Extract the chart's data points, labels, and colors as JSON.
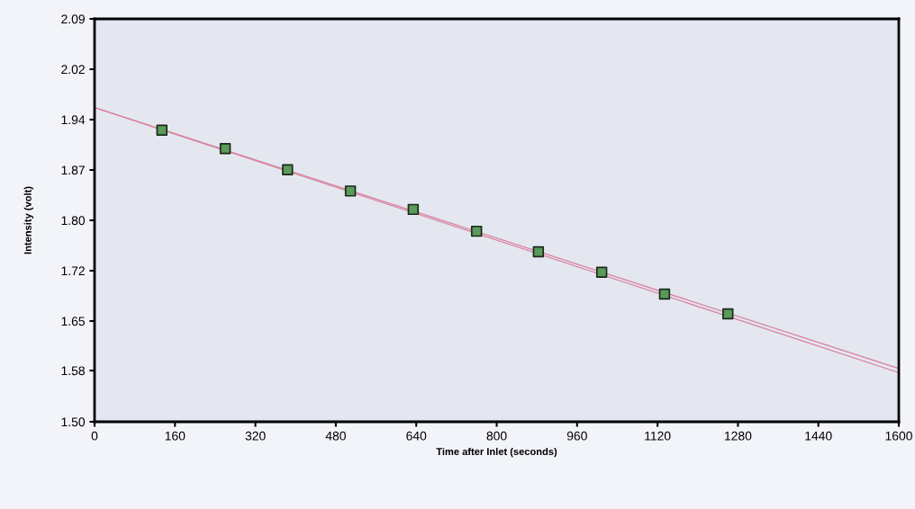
{
  "chart_data": {
    "type": "scatter",
    "xlabel": "Time after Inlet (seconds)",
    "ylabel": "Intensity (volt)",
    "xlim": [
      0,
      1600
    ],
    "xticks": [
      0,
      160,
      320,
      480,
      640,
      800,
      960,
      1120,
      1280,
      1440,
      1600
    ],
    "ylim": [
      1.5,
      2.09
    ],
    "yticks": [
      {
        "value": 1.5,
        "label": "1.50"
      },
      {
        "value": 1.575,
        "label": "1.58"
      },
      {
        "value": 1.6475,
        "label": "1.65"
      },
      {
        "value": 1.72125,
        "label": "1.72"
      },
      {
        "value": 1.795,
        "label": "1.80"
      },
      {
        "value": 1.86875,
        "label": "1.87"
      },
      {
        "value": 1.9425,
        "label": "1.94"
      },
      {
        "value": 2.01625,
        "label": "2.02"
      },
      {
        "value": 2.09,
        "label": "2.09"
      }
    ],
    "grid": false,
    "series": [
      {
        "marker": "square",
        "color": "#5a9a5a",
        "x": [
          134,
          260,
          384,
          509,
          634,
          760,
          883,
          1009,
          1134,
          1260
        ],
        "values": [
          1.927,
          1.9,
          1.869,
          1.838,
          1.811,
          1.779,
          1.749,
          1.719,
          1.687,
          1.658
        ]
      },
      {
        "type": "line",
        "color": "#d9849f",
        "x": [
          0,
          1600
        ],
        "values": [
          1.96,
          1.578
        ]
      },
      {
        "type": "line",
        "color": "#d9849f",
        "x": [
          0,
          1600
        ],
        "values": [
          1.96,
          1.572
        ]
      }
    ]
  }
}
